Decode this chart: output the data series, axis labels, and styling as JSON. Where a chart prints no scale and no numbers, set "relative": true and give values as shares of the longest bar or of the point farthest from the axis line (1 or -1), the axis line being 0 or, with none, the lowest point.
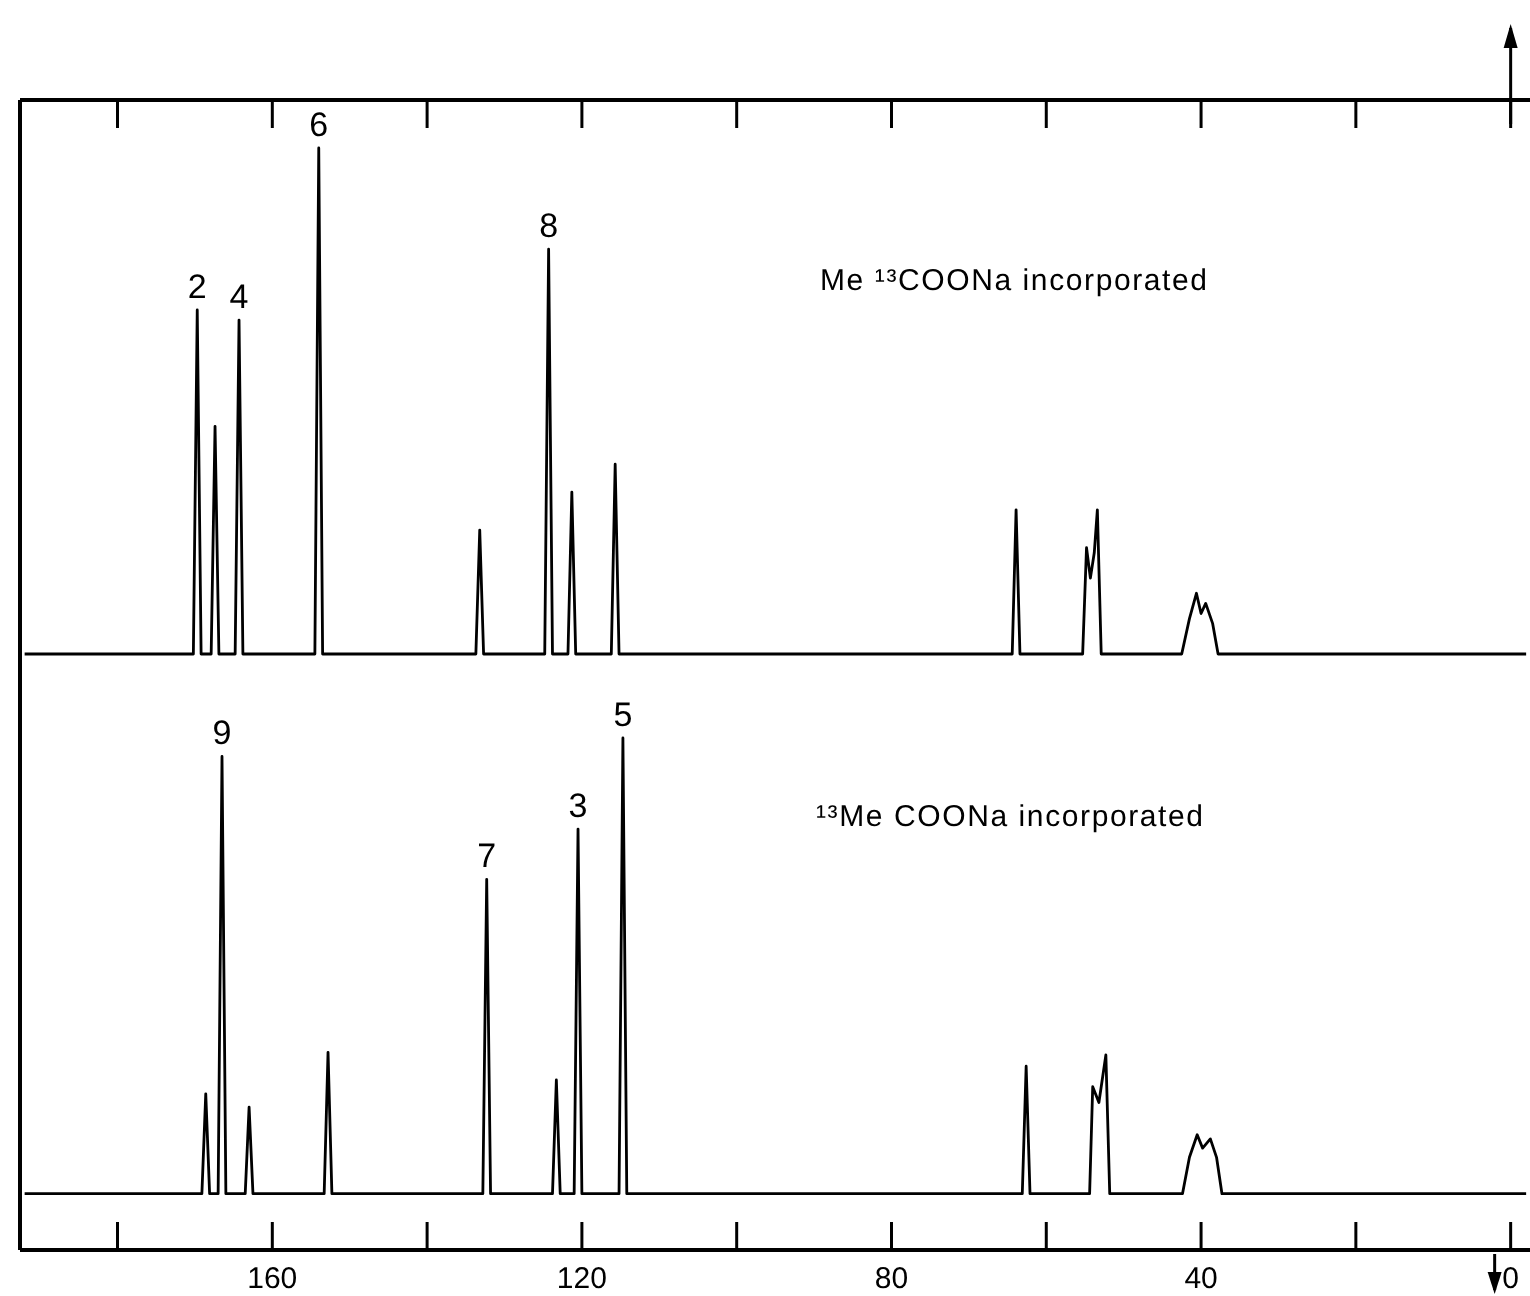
{
  "chart_data": [
    {
      "type": "line",
      "title": "Me ¹³COONa incorporated",
      "relative": true,
      "tick_labels": false,
      "xlim": [
        192.6,
        -2.5
      ],
      "xticks": [
        160,
        120,
        80,
        40,
        0
      ],
      "x": [
        192,
        170.2,
        169.7,
        169.2,
        167.9,
        167.4,
        166.9,
        164.8,
        164.3,
        163.8,
        154.5,
        154.0,
        153.5,
        133.7,
        133.2,
        132.7,
        124.8,
        124.3,
        123.8,
        121.8,
        121.3,
        120.8,
        116.2,
        115.7,
        115.2,
        64.4,
        63.9,
        63.4,
        55.3,
        54.8,
        54.3,
        53.8,
        53.4,
        52.9,
        42.5,
        41.5,
        40.6,
        40.0,
        39.4,
        38.5,
        37.8,
        -2
      ],
      "series": [
        {
          "color": "#000000",
          "values": [
            0,
            0,
            0.68,
            0,
            0,
            0.45,
            0,
            0,
            0.66,
            0,
            0,
            1,
            0,
            0,
            0.245,
            0,
            0,
            0.8,
            0,
            0,
            0.32,
            0,
            0,
            0.375,
            0,
            0,
            0.285,
            0,
            0,
            0.21,
            0.15,
            0.2,
            0.285,
            0,
            0,
            0.07,
            0.12,
            0.08,
            0.1,
            0.06,
            0,
            0
          ]
        }
      ],
      "annotations": [
        {
          "text": "2",
          "x": 169.7,
          "y": 0.68
        },
        {
          "text": "4",
          "x": 164.3,
          "y": 0.66
        },
        {
          "text": "6",
          "x": 154.0,
          "y": 1
        },
        {
          "text": "8",
          "x": 124.3,
          "y": 0.8
        }
      ]
    },
    {
      "type": "line",
      "title": "¹³Me  COONa incorporated",
      "relative": true,
      "xlim": [
        192.6,
        -2.5
      ],
      "xticks": [
        160,
        120,
        80,
        40,
        0
      ],
      "x": [
        192,
        169.1,
        168.6,
        168.1,
        167.0,
        166.5,
        166.0,
        163.5,
        163.0,
        162.5,
        153.3,
        152.8,
        152.3,
        132.8,
        132.3,
        131.8,
        123.8,
        123.3,
        122.8,
        121.0,
        120.5,
        120.0,
        115.2,
        114.7,
        114.2,
        63.1,
        62.6,
        62.1,
        54.4,
        54.0,
        53.2,
        52.3,
        51.8,
        42.4,
        41.5,
        40.5,
        39.8,
        38.8,
        38.0,
        37.3,
        -2
      ],
      "series": [
        {
          "color": "#000000",
          "values": [
            0.11,
            0.11,
            0.305,
            0.11,
            0.11,
            0.964,
            0.11,
            0.11,
            0.279,
            0.11,
            0.11,
            0.386,
            0.11,
            0.11,
            0.724,
            0.11,
            0.11,
            0.332,
            0.11,
            0.11,
            0.822,
            0.11,
            0.11,
            1,
            0.11,
            0.11,
            0.359,
            0.11,
            0.11,
            0.319,
            0.288,
            0.381,
            0.11,
            0.11,
            0.181,
            0.225,
            0.199,
            0.217,
            0.181,
            0.11,
            0.11
          ]
        }
      ],
      "annotations": [
        {
          "text": "9",
          "x": 166.5,
          "y": 0.964
        },
        {
          "text": "7",
          "x": 132.3,
          "y": 0.724
        },
        {
          "text": "3",
          "x": 120.5,
          "y": 0.822
        },
        {
          "text": "5",
          "x": 114.7,
          "y": 1
        }
      ]
    }
  ]
}
